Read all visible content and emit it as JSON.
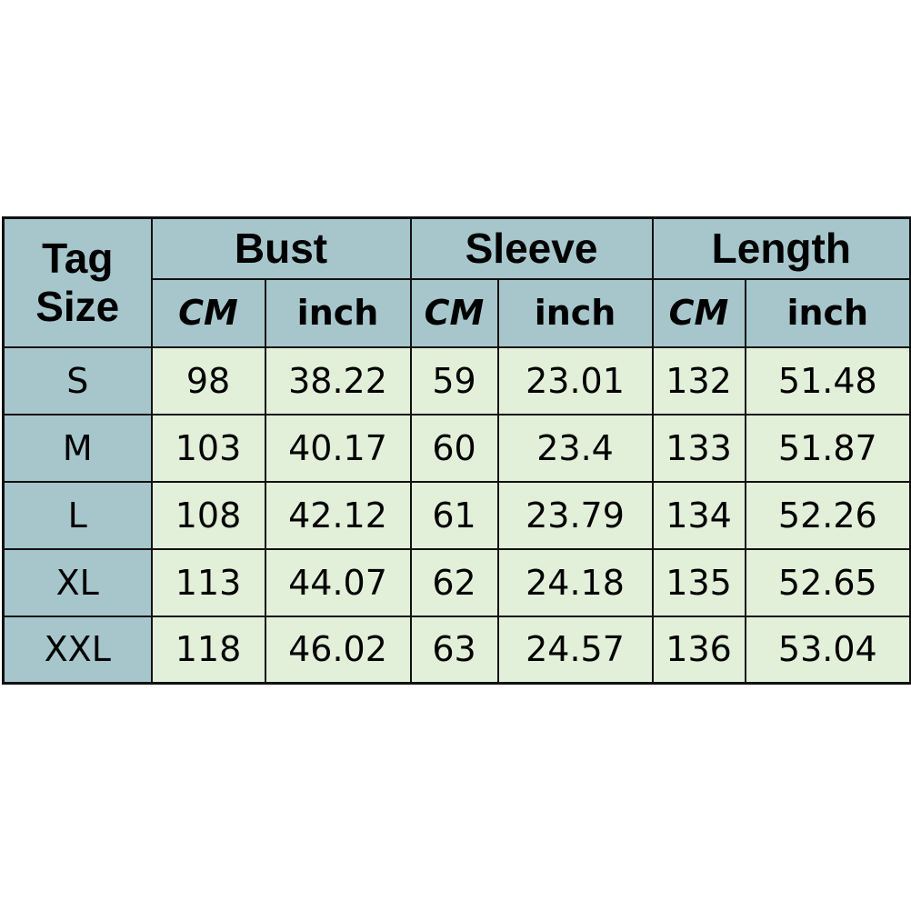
{
  "header": {
    "tag_size": [
      "Tag",
      "Size"
    ],
    "groups": [
      "Bust",
      "Sleeve",
      "Length"
    ],
    "units": [
      "CM",
      "inch",
      "CM",
      "inch",
      "CM",
      "inch"
    ]
  },
  "rows": [
    [
      "S",
      "98",
      "38.22",
      "59",
      "23.01",
      "132",
      "51.48"
    ],
    [
      "M",
      "103",
      "40.17",
      "60",
      "23.4",
      "133",
      "51.87"
    ],
    [
      "L",
      "108",
      "42.12",
      "61",
      "23.79",
      "134",
      "52.26"
    ],
    [
      "XL",
      "113",
      "44.07",
      "62",
      "24.18",
      "135",
      "52.65"
    ],
    [
      "XXL",
      "118",
      "46.02",
      "63",
      "24.57",
      "136",
      "53.04"
    ]
  ],
  "colors": {
    "header": "#a6c6cc",
    "cell": "#e2efd9",
    "border": "#111111"
  }
}
